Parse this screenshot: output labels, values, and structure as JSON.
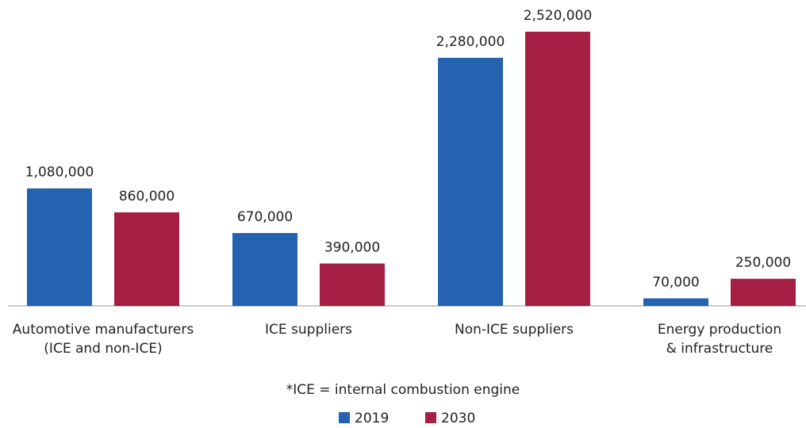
{
  "chart_data": {
    "type": "bar",
    "categories": [
      "Automotive manufacturers\n(ICE and non-ICE)",
      "ICE suppliers",
      "Non-ICE suppliers",
      "Energy production\n& infrastructure"
    ],
    "series": [
      {
        "name": "2019",
        "color": "#2563b0",
        "values": [
          1080000,
          670000,
          2280000,
          70000
        ],
        "value_labels": [
          "1,080,000",
          "670,000",
          "2,280,000",
          "70,000"
        ]
      },
      {
        "name": "2030",
        "color": "#a51f45",
        "values": [
          860000,
          390000,
          2520000,
          250000
        ],
        "value_labels": [
          "860,000",
          "390,000",
          "2,520,000",
          "250,000"
        ]
      }
    ],
    "annotation": "*ICE = internal combustion engine",
    "ylim": [
      0,
      2520000
    ]
  }
}
